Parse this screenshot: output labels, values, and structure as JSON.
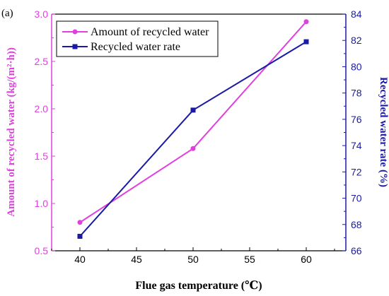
{
  "chart_data": {
    "type": "line",
    "panel_label": "(a)",
    "x": [
      40,
      50,
      60
    ],
    "xlabel": "Flue gas temperature (℃)",
    "xlim": [
      37.5,
      63.5
    ],
    "xticks": [
      "40",
      "45",
      "50",
      "55",
      "60"
    ],
    "ylabel_left": "Amount of recycled water (kg/(m²·h))",
    "ylim_left": [
      0.5,
      3.0
    ],
    "yticks_left": [
      "0.5",
      "1.0",
      "1.5",
      "2.0",
      "2.5",
      "3.0"
    ],
    "ylabel_right": "Recycled water rate (%)",
    "ylim_right": [
      66,
      84
    ],
    "yticks_right": [
      "66",
      "68",
      "70",
      "72",
      "74",
      "76",
      "78",
      "80",
      "82",
      "84"
    ],
    "series": [
      {
        "name": "Amount of recycled water",
        "axis": "left",
        "color": "#e040e0",
        "marker": "circle",
        "values": [
          0.8,
          1.58,
          2.92
        ]
      },
      {
        "name": "Recycled water rate",
        "axis": "right",
        "color": "#1a1aa6",
        "marker": "square",
        "values": [
          67.1,
          76.7,
          81.9
        ]
      }
    ],
    "legend_position": "top-left",
    "grid": false,
    "colors": {
      "left_axis": "#e040e0",
      "right_axis": "#1a1aa6",
      "frame": "#000000"
    }
  }
}
